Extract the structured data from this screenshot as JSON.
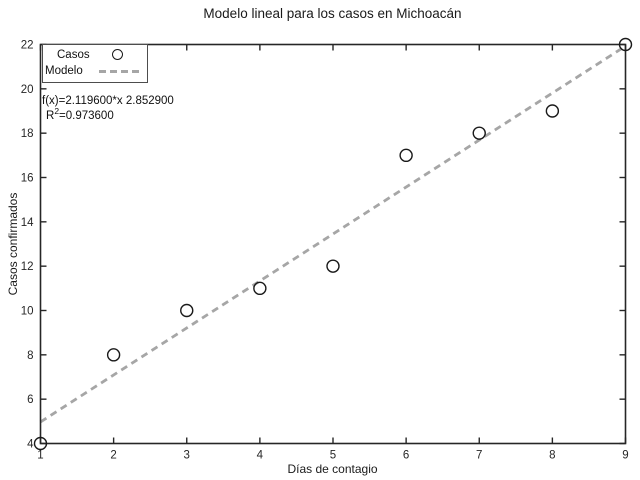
{
  "chart_data": {
    "type": "scatter",
    "title": "Modelo lineal para los casos en Michoacán",
    "xlabel": "Días de contagio",
    "ylabel": "Casos confirmados",
    "xlim": [
      1,
      9
    ],
    "ylim": [
      4,
      22
    ],
    "xticks": [
      1,
      2,
      3,
      4,
      5,
      6,
      7,
      8,
      9
    ],
    "yticks": [
      4,
      6,
      8,
      10,
      12,
      14,
      16,
      18,
      20,
      22
    ],
    "grid": false,
    "legend_position": "top-left",
    "axis_color": "#262626",
    "series": [
      {
        "name": "Casos",
        "type": "scatter",
        "marker": "circle",
        "color": "#1a1a1a",
        "x": [
          1,
          2,
          3,
          4,
          5,
          6,
          7,
          8,
          9
        ],
        "y": [
          4,
          8,
          10,
          11,
          12,
          17,
          18,
          19,
          22
        ]
      },
      {
        "name": "Modelo",
        "type": "line",
        "style": "dashed",
        "color": "#a6a6a6",
        "model": {
          "slope": 2.1196,
          "intercept": 2.8529
        }
      }
    ],
    "annotation": {
      "line1": "f(x)=2.119600*x 2.852900",
      "r_base": "R",
      "r_exp": "2",
      "r_value": "=0.973600"
    }
  }
}
